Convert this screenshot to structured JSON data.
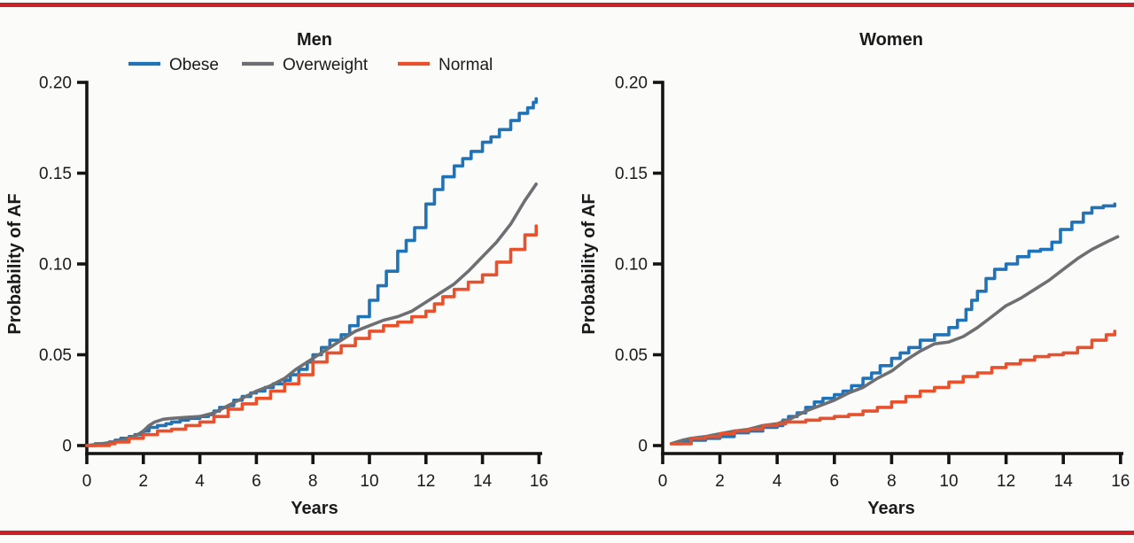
{
  "page": {
    "background": "#fbfbfa",
    "top_rule_color": "#c92128",
    "bottom_rule_color": "#c92128",
    "text_color": "#1a1a1a"
  },
  "chart_data": [
    {
      "type": "line",
      "title": "Men",
      "xlabel": "Years",
      "ylabel": "Probability of AF",
      "xlim": [
        0,
        16
      ],
      "ylim": [
        0,
        0.2
      ],
      "xticks": [
        0,
        2,
        4,
        6,
        8,
        10,
        12,
        14,
        16
      ],
      "yticks": [
        0,
        0.05,
        0.1,
        0.15,
        0.2
      ],
      "ytick_labels": [
        "0",
        "0.05",
        "0.10",
        "0.15",
        "0.20"
      ],
      "grid": false,
      "legend_position": "top-left",
      "series": [
        {
          "name": "Obese",
          "color": "#2173b8",
          "interpolation": "step",
          "points": [
            [
              0,
              0.0
            ],
            [
              0.3,
              0.001
            ],
            [
              0.8,
              0.002
            ],
            [
              1.0,
              0.003
            ],
            [
              1.2,
              0.004
            ],
            [
              1.5,
              0.005
            ],
            [
              1.7,
              0.006
            ],
            [
              2.0,
              0.008
            ],
            [
              2.2,
              0.01
            ],
            [
              2.5,
              0.011
            ],
            [
              2.8,
              0.012
            ],
            [
              3.0,
              0.013
            ],
            [
              3.3,
              0.014
            ],
            [
              3.6,
              0.015
            ],
            [
              4.0,
              0.016
            ],
            [
              4.3,
              0.017
            ],
            [
              4.5,
              0.019
            ],
            [
              4.7,
              0.021
            ],
            [
              5.0,
              0.022
            ],
            [
              5.2,
              0.025
            ],
            [
              5.5,
              0.027
            ],
            [
              5.8,
              0.029
            ],
            [
              6.0,
              0.03
            ],
            [
              6.3,
              0.032
            ],
            [
              6.6,
              0.034
            ],
            [
              7.0,
              0.036
            ],
            [
              7.2,
              0.039
            ],
            [
              7.5,
              0.042
            ],
            [
              7.8,
              0.046
            ],
            [
              8.0,
              0.05
            ],
            [
              8.3,
              0.054
            ],
            [
              8.6,
              0.058
            ],
            [
              9.0,
              0.061
            ],
            [
              9.3,
              0.066
            ],
            [
              9.6,
              0.071
            ],
            [
              10.0,
              0.08
            ],
            [
              10.3,
              0.088
            ],
            [
              10.6,
              0.096
            ],
            [
              11.0,
              0.107
            ],
            [
              11.3,
              0.113
            ],
            [
              11.6,
              0.12
            ],
            [
              12.0,
              0.133
            ],
            [
              12.3,
              0.141
            ],
            [
              12.6,
              0.148
            ],
            [
              13.0,
              0.154
            ],
            [
              13.3,
              0.158
            ],
            [
              13.6,
              0.162
            ],
            [
              14.0,
              0.167
            ],
            [
              14.3,
              0.17
            ],
            [
              14.6,
              0.174
            ],
            [
              15.0,
              0.179
            ],
            [
              15.3,
              0.183
            ],
            [
              15.6,
              0.186
            ],
            [
              15.8,
              0.189
            ],
            [
              15.9,
              0.191
            ]
          ]
        },
        {
          "name": "Overweight",
          "color": "#6e6f72",
          "interpolation": "linear",
          "points": [
            [
              0,
              0.0
            ],
            [
              0.5,
              0.001
            ],
            [
              1.0,
              0.002
            ],
            [
              1.5,
              0.004
            ],
            [
              1.8,
              0.006
            ],
            [
              2.0,
              0.008
            ],
            [
              2.2,
              0.011
            ],
            [
              2.4,
              0.013
            ],
            [
              2.7,
              0.0145
            ],
            [
              3.0,
              0.015
            ],
            [
              3.5,
              0.0155
            ],
            [
              4.0,
              0.016
            ],
            [
              4.5,
              0.018
            ],
            [
              5.0,
              0.022
            ],
            [
              5.5,
              0.026
            ],
            [
              6.0,
              0.03
            ],
            [
              6.5,
              0.033
            ],
            [
              7.0,
              0.037
            ],
            [
              7.4,
              0.042
            ],
            [
              7.8,
              0.046
            ],
            [
              8.0,
              0.048
            ],
            [
              8.5,
              0.053
            ],
            [
              9.0,
              0.058
            ],
            [
              9.5,
              0.063
            ],
            [
              10.0,
              0.066
            ],
            [
              10.5,
              0.069
            ],
            [
              11.0,
              0.071
            ],
            [
              11.5,
              0.074
            ],
            [
              12.0,
              0.079
            ],
            [
              12.5,
              0.084
            ],
            [
              13.0,
              0.089
            ],
            [
              13.5,
              0.096
            ],
            [
              14.0,
              0.104
            ],
            [
              14.5,
              0.112
            ],
            [
              15.0,
              0.122
            ],
            [
              15.5,
              0.135
            ],
            [
              15.9,
              0.144
            ]
          ]
        },
        {
          "name": "Normal",
          "color": "#e8512b",
          "interpolation": "step",
          "points": [
            [
              0,
              0.0
            ],
            [
              0.8,
              0.001
            ],
            [
              1.0,
              0.002
            ],
            [
              1.5,
              0.004
            ],
            [
              2.0,
              0.006
            ],
            [
              2.5,
              0.008
            ],
            [
              3.0,
              0.009
            ],
            [
              3.5,
              0.011
            ],
            [
              4.0,
              0.013
            ],
            [
              4.5,
              0.016
            ],
            [
              5.0,
              0.02
            ],
            [
              5.5,
              0.023
            ],
            [
              6.0,
              0.026
            ],
            [
              6.5,
              0.03
            ],
            [
              7.0,
              0.034
            ],
            [
              7.5,
              0.039
            ],
            [
              8.0,
              0.046
            ],
            [
              8.5,
              0.051
            ],
            [
              9.0,
              0.055
            ],
            [
              9.5,
              0.059
            ],
            [
              10.0,
              0.063
            ],
            [
              10.5,
              0.066
            ],
            [
              11.0,
              0.068
            ],
            [
              11.5,
              0.071
            ],
            [
              12.0,
              0.074
            ],
            [
              12.3,
              0.078
            ],
            [
              12.6,
              0.082
            ],
            [
              13.0,
              0.086
            ],
            [
              13.5,
              0.09
            ],
            [
              14.0,
              0.094
            ],
            [
              14.5,
              0.101
            ],
            [
              15.0,
              0.108
            ],
            [
              15.5,
              0.116
            ],
            [
              15.9,
              0.121
            ]
          ]
        }
      ]
    },
    {
      "type": "line",
      "title": "Women",
      "xlabel": "Years",
      "ylabel": "Probability of AF",
      "xlim": [
        0,
        16
      ],
      "ylim": [
        0,
        0.2
      ],
      "xticks": [
        0,
        2,
        4,
        6,
        8,
        10,
        12,
        14,
        16
      ],
      "yticks": [
        0,
        0.05,
        0.1,
        0.15,
        0.2
      ],
      "ytick_labels": [
        "0",
        "0.05",
        "0.10",
        "0.15",
        "0.20"
      ],
      "grid": false,
      "legend_position": "none",
      "series": [
        {
          "name": "Obese",
          "color": "#2173b8",
          "interpolation": "step",
          "points": [
            [
              0.3,
              0.001
            ],
            [
              0.7,
              0.002
            ],
            [
              1.0,
              0.003
            ],
            [
              1.5,
              0.004
            ],
            [
              2.0,
              0.005
            ],
            [
              2.5,
              0.007
            ],
            [
              3.0,
              0.008
            ],
            [
              3.5,
              0.01
            ],
            [
              4.0,
              0.011
            ],
            [
              4.2,
              0.014
            ],
            [
              4.4,
              0.016
            ],
            [
              4.7,
              0.018
            ],
            [
              5.0,
              0.021
            ],
            [
              5.3,
              0.024
            ],
            [
              5.6,
              0.026
            ],
            [
              6.0,
              0.028
            ],
            [
              6.3,
              0.03
            ],
            [
              6.6,
              0.033
            ],
            [
              7.0,
              0.037
            ],
            [
              7.3,
              0.04
            ],
            [
              7.6,
              0.044
            ],
            [
              8.0,
              0.048
            ],
            [
              8.3,
              0.051
            ],
            [
              8.6,
              0.054
            ],
            [
              9.0,
              0.058
            ],
            [
              9.5,
              0.061
            ],
            [
              10.0,
              0.065
            ],
            [
              10.3,
              0.069
            ],
            [
              10.6,
              0.075
            ],
            [
              10.8,
              0.08
            ],
            [
              11.0,
              0.085
            ],
            [
              11.3,
              0.092
            ],
            [
              11.6,
              0.097
            ],
            [
              12.0,
              0.1
            ],
            [
              12.4,
              0.104
            ],
            [
              12.8,
              0.107
            ],
            [
              13.2,
              0.108
            ],
            [
              13.6,
              0.112
            ],
            [
              13.9,
              0.119
            ],
            [
              14.3,
              0.123
            ],
            [
              14.7,
              0.128
            ],
            [
              15.0,
              0.131
            ],
            [
              15.4,
              0.132
            ],
            [
              15.8,
              0.133
            ]
          ]
        },
        {
          "name": "Overweight",
          "color": "#6e6f72",
          "interpolation": "linear",
          "points": [
            [
              0.3,
              0.001
            ],
            [
              0.7,
              0.003
            ],
            [
              1.0,
              0.004
            ],
            [
              1.5,
              0.005
            ],
            [
              2.0,
              0.0065
            ],
            [
              2.5,
              0.008
            ],
            [
              3.0,
              0.009
            ],
            [
              3.5,
              0.011
            ],
            [
              4.0,
              0.012
            ],
            [
              4.5,
              0.015
            ],
            [
              5.0,
              0.019
            ],
            [
              5.5,
              0.022
            ],
            [
              6.0,
              0.025
            ],
            [
              6.5,
              0.029
            ],
            [
              7.0,
              0.032
            ],
            [
              7.5,
              0.037
            ],
            [
              8.0,
              0.041
            ],
            [
              8.5,
              0.047
            ],
            [
              9.0,
              0.052
            ],
            [
              9.5,
              0.056
            ],
            [
              10.0,
              0.057
            ],
            [
              10.5,
              0.06
            ],
            [
              11.0,
              0.065
            ],
            [
              11.5,
              0.071
            ],
            [
              12.0,
              0.077
            ],
            [
              12.5,
              0.081
            ],
            [
              13.0,
              0.086
            ],
            [
              13.5,
              0.091
            ],
            [
              14.0,
              0.097
            ],
            [
              14.5,
              0.103
            ],
            [
              15.0,
              0.108
            ],
            [
              15.5,
              0.112
            ],
            [
              15.9,
              0.115
            ]
          ]
        },
        {
          "name": "Normal",
          "color": "#e8512b",
          "interpolation": "step",
          "points": [
            [
              0.3,
              0.001
            ],
            [
              1.0,
              0.004
            ],
            [
              1.5,
              0.005
            ],
            [
              2.0,
              0.0065
            ],
            [
              2.5,
              0.008
            ],
            [
              3.0,
              0.009
            ],
            [
              3.5,
              0.011
            ],
            [
              4.0,
              0.012
            ],
            [
              4.3,
              0.013
            ],
            [
              5.0,
              0.014
            ],
            [
              5.5,
              0.015
            ],
            [
              6.0,
              0.016
            ],
            [
              6.5,
              0.017
            ],
            [
              7.0,
              0.019
            ],
            [
              7.5,
              0.021
            ],
            [
              8.0,
              0.024
            ],
            [
              8.5,
              0.027
            ],
            [
              9.0,
              0.03
            ],
            [
              9.5,
              0.032
            ],
            [
              10.0,
              0.035
            ],
            [
              10.5,
              0.038
            ],
            [
              11.0,
              0.04
            ],
            [
              11.5,
              0.043
            ],
            [
              12.0,
              0.045
            ],
            [
              12.5,
              0.047
            ],
            [
              13.0,
              0.049
            ],
            [
              13.5,
              0.05
            ],
            [
              14.0,
              0.051
            ],
            [
              14.5,
              0.054
            ],
            [
              15.0,
              0.058
            ],
            [
              15.5,
              0.061
            ],
            [
              15.8,
              0.063
            ]
          ]
        }
      ]
    }
  ]
}
